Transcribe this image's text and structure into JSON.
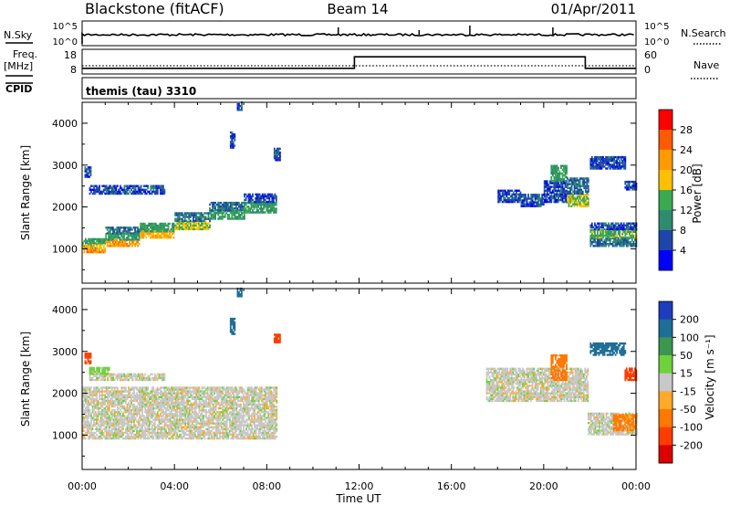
{
  "header": {
    "station": "Blackstone (fitACF)",
    "beam": "Beam 14",
    "date": "01/Apr/2011"
  },
  "panels": {
    "sky_label": "N.Sky",
    "sky_ticks": [
      "10^5",
      "10^0"
    ],
    "search_label": "N.Search",
    "search_ticks": [
      "10^5",
      "10^0"
    ],
    "freq_label": "Freq.",
    "freq_unit": "[MHz]",
    "freq_ticks": [
      "18",
      "8"
    ],
    "nave_label": "Nave",
    "nave_ticks": [
      "60",
      "0"
    ],
    "cpid_label": "CPID",
    "cpid_value": "themis (tau) 3310"
  },
  "colorbars": {
    "power": {
      "label": "Power [dB]",
      "ticks": [
        "28",
        "24",
        "20",
        "16",
        "12",
        "8",
        "4"
      ],
      "colors": [
        "#ff0000",
        "#ff5a00",
        "#ff9a00",
        "#ffc000",
        "#3aaa50",
        "#2e8b70",
        "#1e46aa",
        "#0000ff"
      ]
    },
    "velocity": {
      "label": "Velocity [m s⁻¹]",
      "ticks": [
        "200",
        "100",
        "50",
        "15",
        "-15",
        "-50",
        "-100",
        "-200"
      ],
      "colors": [
        "#1e3cbe",
        "#1e6e96",
        "#3c9650",
        "#6ed23c",
        "#c8c8c8",
        "#ffaa28",
        "#ff7800",
        "#ff3c00",
        "#dd0000"
      ]
    }
  },
  "chart_data": {
    "type": "heatmap",
    "xlabel": "Time UT",
    "x_ticks": [
      "00:00",
      "04:00",
      "08:00",
      "12:00",
      "16:00",
      "20:00",
      "00:00"
    ],
    "xlim_hours": [
      0,
      24
    ],
    "ylabel": "Slant Range [km]",
    "y_ticks": [
      1000,
      2000,
      3000,
      4000
    ],
    "ylim_km": [
      180,
      4500
    ],
    "frequency_mhz": [
      {
        "from": 0,
        "to": 11.8,
        "value": 10
      },
      {
        "from": 11.8,
        "to": 21.8,
        "value": 16
      },
      {
        "from": 21.8,
        "to": 24,
        "value": 10
      }
    ],
    "nave": 20,
    "power_bands": [
      {
        "t0": 0.0,
        "t1": 1.0,
        "r0": 900,
        "r1": 1000,
        "dB": 22
      },
      {
        "t0": 0.0,
        "t1": 1.0,
        "r0": 1000,
        "r1": 1120,
        "dB": 18
      },
      {
        "t0": 0.0,
        "t1": 1.0,
        "r0": 1120,
        "r1": 1250,
        "dB": 12
      },
      {
        "t0": 1.0,
        "t1": 2.5,
        "r0": 1050,
        "r1": 1200,
        "dB": 22
      },
      {
        "t0": 1.0,
        "t1": 2.5,
        "r0": 1200,
        "r1": 1350,
        "dB": 12
      },
      {
        "t0": 1.0,
        "t1": 2.5,
        "r0": 1350,
        "r1": 1500,
        "dB": 8
      },
      {
        "t0": 2.5,
        "t1": 4.0,
        "r0": 1250,
        "r1": 1400,
        "dB": 20
      },
      {
        "t0": 2.5,
        "t1": 4.0,
        "r0": 1400,
        "r1": 1600,
        "dB": 12
      },
      {
        "t0": 4.0,
        "t1": 5.5,
        "r0": 1450,
        "r1": 1650,
        "dB": 16
      },
      {
        "t0": 4.0,
        "t1": 5.5,
        "r0": 1650,
        "r1": 1850,
        "dB": 8
      },
      {
        "t0": 5.5,
        "t1": 7.0,
        "r0": 1700,
        "r1": 1900,
        "dB": 12
      },
      {
        "t0": 5.5,
        "t1": 7.0,
        "r0": 1900,
        "r1": 2100,
        "dB": 8
      },
      {
        "t0": 7.0,
        "t1": 8.4,
        "r0": 1850,
        "r1": 2100,
        "dB": 12
      },
      {
        "t0": 7.0,
        "t1": 8.4,
        "r0": 2100,
        "r1": 2300,
        "dB": 6
      },
      {
        "t0": 0.3,
        "t1": 3.6,
        "r0": 2300,
        "r1": 2500,
        "dB": 6
      },
      {
        "t0": 0.1,
        "t1": 0.4,
        "r0": 2700,
        "r1": 2950,
        "dB": 6
      },
      {
        "t0": 8.3,
        "t1": 8.6,
        "r0": 3100,
        "r1": 3400,
        "dB": 6
      },
      {
        "t0": 6.4,
        "t1": 6.6,
        "r0": 3400,
        "r1": 3800,
        "dB": 6
      },
      {
        "t0": 6.7,
        "t1": 6.9,
        "r0": 4300,
        "r1": 4500,
        "dB": 6
      },
      {
        "t0": 18.0,
        "t1": 19.0,
        "r0": 2100,
        "r1": 2400,
        "dB": 6
      },
      {
        "t0": 19.0,
        "t1": 20.0,
        "r0": 2000,
        "r1": 2300,
        "dB": 6
      },
      {
        "t0": 20.0,
        "t1": 21.0,
        "r0": 2100,
        "r1": 2600,
        "dB": 6
      },
      {
        "t0": 20.3,
        "t1": 21.0,
        "r0": 2600,
        "r1": 3000,
        "dB": 12
      },
      {
        "t0": 21.0,
        "t1": 21.9,
        "r0": 2000,
        "r1": 2300,
        "dB": 16
      },
      {
        "t0": 21.0,
        "t1": 21.9,
        "r0": 2300,
        "r1": 2700,
        "dB": 8
      },
      {
        "t0": 22.0,
        "t1": 24.0,
        "r0": 1050,
        "r1": 1250,
        "dB": 8
      },
      {
        "t0": 22.0,
        "t1": 24.0,
        "r0": 1250,
        "r1": 1450,
        "dB": 14
      },
      {
        "t0": 22.0,
        "t1": 24.0,
        "r0": 1450,
        "r1": 1600,
        "dB": 6
      },
      {
        "t0": 22.0,
        "t1": 23.5,
        "r0": 2900,
        "r1": 3200,
        "dB": 6
      },
      {
        "t0": 23.5,
        "t1": 24.0,
        "r0": 2400,
        "r1": 2600,
        "dB": 6
      }
    ],
    "velocity_bands": [
      {
        "t0": 0.0,
        "t1": 8.4,
        "r0": 900,
        "r1": 2150,
        "v": 0
      },
      {
        "t0": 0.3,
        "t1": 3.6,
        "r0": 2300,
        "r1": 2450,
        "v": 0
      },
      {
        "t0": 0.3,
        "t1": 1.2,
        "r0": 2450,
        "r1": 2600,
        "v": 30
      },
      {
        "t0": 0.1,
        "t1": 0.4,
        "r0": 2700,
        "r1": 2950,
        "v": -150
      },
      {
        "t0": 8.3,
        "t1": 8.6,
        "r0": 3200,
        "r1": 3400,
        "v": -180
      },
      {
        "t0": 6.4,
        "t1": 6.6,
        "r0": 3400,
        "r1": 3800,
        "v": 160
      },
      {
        "t0": 6.7,
        "t1": 6.9,
        "r0": 4300,
        "r1": 4500,
        "v": 160
      },
      {
        "t0": 17.5,
        "t1": 21.9,
        "r0": 1800,
        "r1": 2600,
        "v": 0
      },
      {
        "t0": 20.3,
        "t1": 21.0,
        "r0": 2300,
        "r1": 2900,
        "v": -80
      },
      {
        "t0": 21.9,
        "t1": 24.0,
        "r0": 1000,
        "r1": 1500,
        "v": 0
      },
      {
        "t0": 23.0,
        "t1": 24.0,
        "r0": 1100,
        "r1": 1500,
        "v": -60
      },
      {
        "t0": 22.0,
        "t1": 23.5,
        "r0": 2900,
        "r1": 3200,
        "v": 150
      },
      {
        "t0": 23.5,
        "t1": 24.0,
        "r0": 2300,
        "r1": 2600,
        "v": -180
      }
    ]
  }
}
